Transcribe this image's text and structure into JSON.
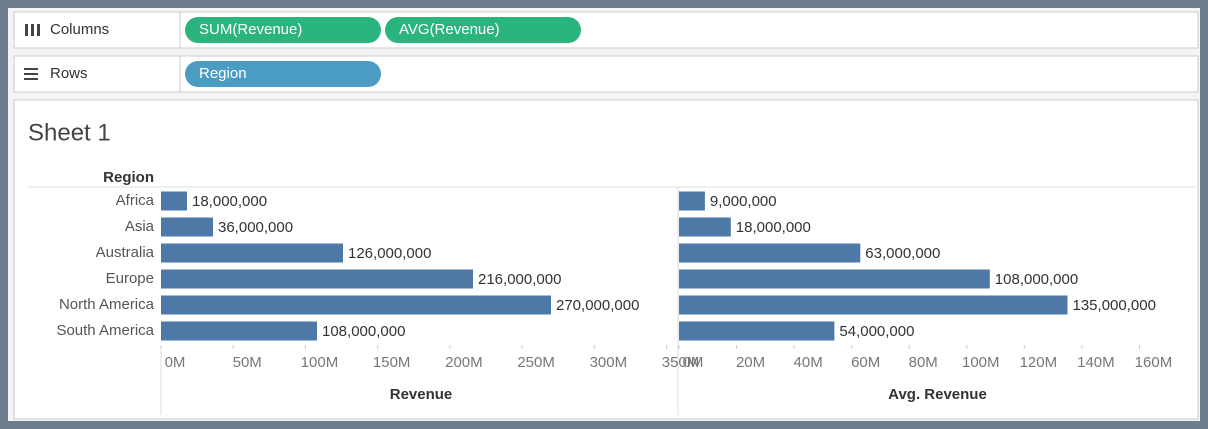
{
  "shelves": {
    "columns": {
      "label": "Columns",
      "pills": [
        "SUM(Revenue)",
        "AVG(Revenue)"
      ]
    },
    "rows": {
      "label": "Rows",
      "pills": [
        "Region"
      ]
    }
  },
  "sheet_title": "Sheet 1",
  "row_header": "Region",
  "chart_data": [
    {
      "type": "bar",
      "orientation": "horizontal",
      "color": "#4e79a7",
      "categories": [
        "Africa",
        "Asia",
        "Australia",
        "Europe",
        "North America",
        "South America"
      ],
      "values": [
        18000000,
        36000000,
        126000000,
        216000000,
        270000000,
        108000000
      ],
      "value_labels": [
        "18,000,000",
        "36,000,000",
        "126,000,000",
        "216,000,000",
        "270,000,000",
        "108,000,000"
      ],
      "xlabel": "Revenue",
      "xlim": [
        0,
        360000000
      ],
      "xticks": [
        {
          "value": 0,
          "label": "0M"
        },
        {
          "value": 50000000,
          "label": "50M"
        },
        {
          "value": 100000000,
          "label": "100M"
        },
        {
          "value": 150000000,
          "label": "150M"
        },
        {
          "value": 200000000,
          "label": "200M"
        },
        {
          "value": 250000000,
          "label": "250M"
        },
        {
          "value": 300000000,
          "label": "300M"
        },
        {
          "value": 350000000,
          "label": "350M"
        }
      ]
    },
    {
      "type": "bar",
      "orientation": "horizontal",
      "color": "#4e79a7",
      "values": [
        9000000,
        18000000,
        63000000,
        108000000,
        135000000,
        54000000
      ],
      "value_labels": [
        "9,000,000",
        "18,000,000",
        "63,000,000",
        "108,000,000",
        "135,000,000",
        "54,000,000"
      ],
      "xlabel": "Avg. Revenue",
      "xlim": [
        0,
        180000000
      ],
      "xticks": [
        {
          "value": 0,
          "label": "0M"
        },
        {
          "value": 20000000,
          "label": "20M"
        },
        {
          "value": 40000000,
          "label": "40M"
        },
        {
          "value": 60000000,
          "label": "60M"
        },
        {
          "value": 80000000,
          "label": "80M"
        },
        {
          "value": 100000000,
          "label": "100M"
        },
        {
          "value": 120000000,
          "label": "120M"
        },
        {
          "value": 140000000,
          "label": "140M"
        },
        {
          "value": 160000000,
          "label": "160M"
        }
      ]
    }
  ]
}
